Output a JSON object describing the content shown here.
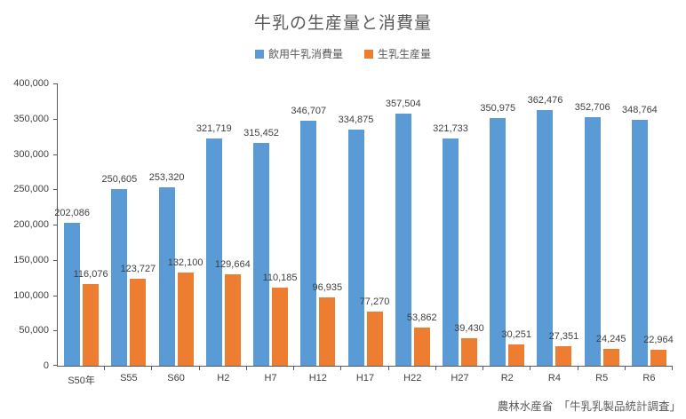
{
  "chart_data": {
    "type": "bar",
    "title": "牛乳の生産量と消費量",
    "categories": [
      "S50年",
      "S55",
      "S60",
      "H2",
      "H7",
      "H12",
      "H17",
      "H22",
      "H27",
      "R2",
      "R4",
      "R5",
      "R6"
    ],
    "series": [
      {
        "name": "飲用牛乳消費量",
        "color": "#5B9BD5",
        "values": [
          202086,
          250605,
          253320,
          321719,
          315452,
          346707,
          334875,
          357504,
          321733,
          350975,
          362476,
          352706,
          348764
        ]
      },
      {
        "name": "生乳生産量",
        "color": "#ED7D31",
        "values": [
          116076,
          123727,
          132100,
          129664,
          110185,
          96935,
          77270,
          53862,
          39430,
          30251,
          27351,
          24245,
          22964
        ]
      }
    ],
    "ylim": [
      0,
      400000
    ],
    "ytick_step": 50000,
    "grid": false,
    "legend_position": "top",
    "data_labels": true,
    "source_note": "農林水産省　「牛乳乳製品統計調査」"
  },
  "colors": {
    "consumption_blue": "#5B9BD5",
    "production_orange": "#ED7D31",
    "axis": "#595959",
    "text": "#404040"
  }
}
